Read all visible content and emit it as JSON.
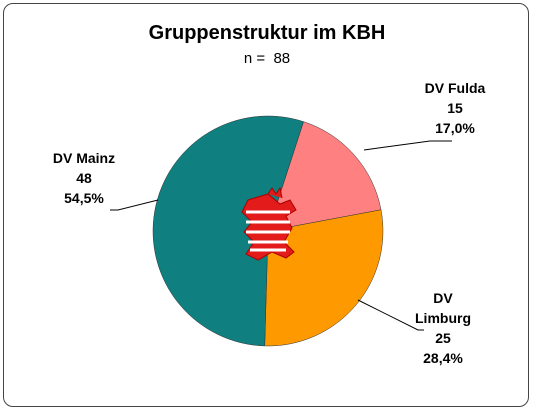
{
  "chart_data": {
    "type": "pie",
    "title": "Gruppenstruktur im KBH",
    "subtitle": "n =  88",
    "categories": [
      "DV Fulda",
      "DV Limburg",
      "DV Mainz"
    ],
    "values": [
      15,
      25,
      48
    ],
    "percentages": [
      17.0,
      28.4,
      54.5
    ],
    "percentage_labels": [
      "17,0%",
      "28,4%",
      "54,5%"
    ],
    "colors": [
      "#ff8080",
      "#ff9900",
      "#0f7f7f"
    ]
  }
}
